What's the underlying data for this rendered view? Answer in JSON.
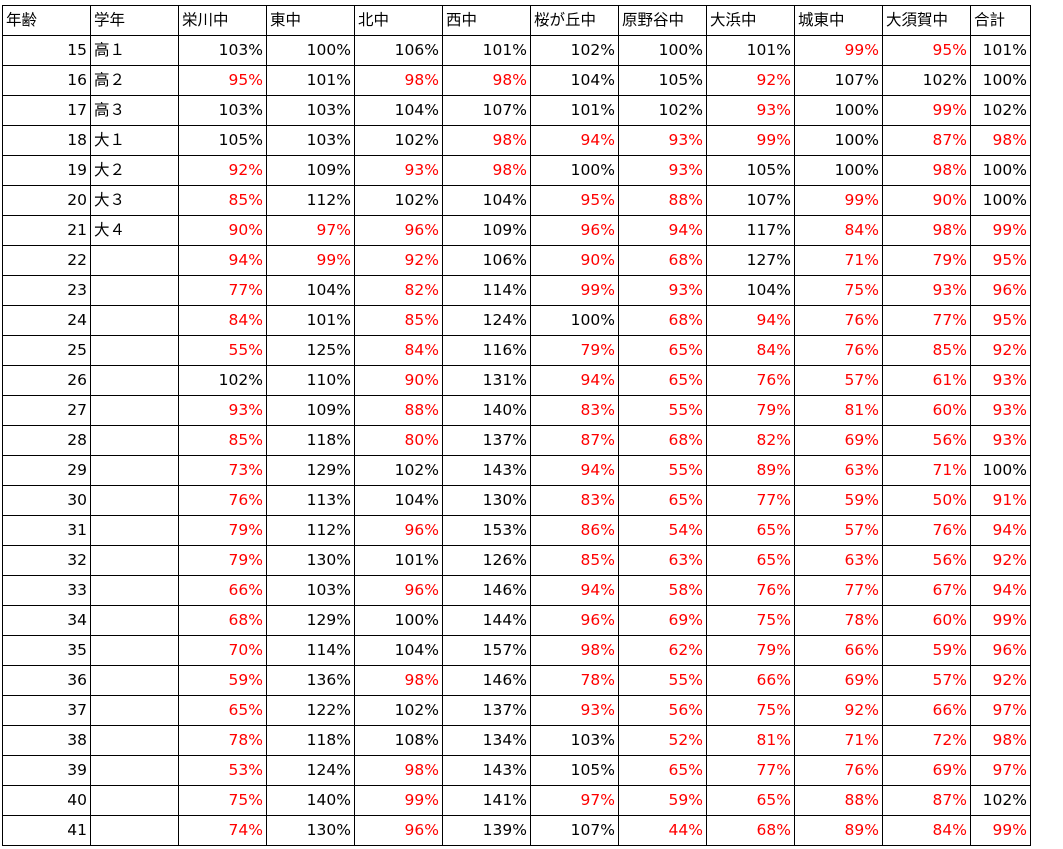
{
  "sheet": {
    "headers": [
      "年齢",
      "学年",
      "栄川中",
      "東中",
      "北中",
      "西中",
      "桜が丘中",
      "原野谷中",
      "大浜中",
      "城東中",
      "大須賀中",
      "合計"
    ],
    "rows": [
      {
        "age": "15",
        "grade": "高１",
        "values": [
          "103%",
          "100%",
          "106%",
          "101%",
          "102%",
          "100%",
          "101%",
          "99%",
          "95%",
          "101%"
        ]
      },
      {
        "age": "16",
        "grade": "高２",
        "values": [
          "95%",
          "101%",
          "98%",
          "98%",
          "104%",
          "105%",
          "92%",
          "107%",
          "102%",
          "100%"
        ]
      },
      {
        "age": "17",
        "grade": "高３",
        "values": [
          "103%",
          "103%",
          "104%",
          "107%",
          "101%",
          "102%",
          "93%",
          "100%",
          "99%",
          "102%"
        ]
      },
      {
        "age": "18",
        "grade": "大１",
        "values": [
          "105%",
          "103%",
          "102%",
          "98%",
          "94%",
          "93%",
          "99%",
          "100%",
          "87%",
          "98%"
        ]
      },
      {
        "age": "19",
        "grade": "大２",
        "values": [
          "92%",
          "109%",
          "93%",
          "98%",
          "100%",
          "93%",
          "105%",
          "100%",
          "98%",
          "100%"
        ]
      },
      {
        "age": "20",
        "grade": "大３",
        "values": [
          "85%",
          "112%",
          "102%",
          "104%",
          "95%",
          "88%",
          "107%",
          "99%",
          "90%",
          "100%"
        ]
      },
      {
        "age": "21",
        "grade": "大４",
        "values": [
          "90%",
          "97%",
          "96%",
          "109%",
          "96%",
          "94%",
          "117%",
          "84%",
          "98%",
          "99%"
        ]
      },
      {
        "age": "22",
        "grade": "",
        "values": [
          "94%",
          "99%",
          "92%",
          "106%",
          "90%",
          "68%",
          "127%",
          "71%",
          "79%",
          "95%"
        ]
      },
      {
        "age": "23",
        "grade": "",
        "values": [
          "77%",
          "104%",
          "82%",
          "114%",
          "99%",
          "93%",
          "104%",
          "75%",
          "93%",
          "96%"
        ]
      },
      {
        "age": "24",
        "grade": "",
        "values": [
          "84%",
          "101%",
          "85%",
          "124%",
          "100%",
          "68%",
          "94%",
          "76%",
          "77%",
          "95%"
        ]
      },
      {
        "age": "25",
        "grade": "",
        "values": [
          "55%",
          "125%",
          "84%",
          "116%",
          "79%",
          "65%",
          "84%",
          "76%",
          "85%",
          "92%"
        ]
      },
      {
        "age": "26",
        "grade": "",
        "values": [
          "102%",
          "110%",
          "90%",
          "131%",
          "94%",
          "65%",
          "76%",
          "57%",
          "61%",
          "93%"
        ]
      },
      {
        "age": "27",
        "grade": "",
        "values": [
          "93%",
          "109%",
          "88%",
          "140%",
          "83%",
          "55%",
          "79%",
          "81%",
          "60%",
          "93%"
        ]
      },
      {
        "age": "28",
        "grade": "",
        "values": [
          "85%",
          "118%",
          "80%",
          "137%",
          "87%",
          "68%",
          "82%",
          "69%",
          "56%",
          "93%"
        ]
      },
      {
        "age": "29",
        "grade": "",
        "values": [
          "73%",
          "129%",
          "102%",
          "143%",
          "94%",
          "55%",
          "89%",
          "63%",
          "71%",
          "100%"
        ]
      },
      {
        "age": "30",
        "grade": "",
        "values": [
          "76%",
          "113%",
          "104%",
          "130%",
          "83%",
          "65%",
          "77%",
          "59%",
          "50%",
          "91%"
        ]
      },
      {
        "age": "31",
        "grade": "",
        "values": [
          "79%",
          "112%",
          "96%",
          "153%",
          "86%",
          "54%",
          "65%",
          "57%",
          "76%",
          "94%"
        ]
      },
      {
        "age": "32",
        "grade": "",
        "values": [
          "79%",
          "130%",
          "101%",
          "126%",
          "85%",
          "63%",
          "65%",
          "63%",
          "56%",
          "92%"
        ]
      },
      {
        "age": "33",
        "grade": "",
        "values": [
          "66%",
          "103%",
          "96%",
          "146%",
          "94%",
          "58%",
          "76%",
          "77%",
          "67%",
          "94%"
        ]
      },
      {
        "age": "34",
        "grade": "",
        "values": [
          "68%",
          "129%",
          "100%",
          "144%",
          "96%",
          "69%",
          "75%",
          "78%",
          "60%",
          "99%"
        ]
      },
      {
        "age": "35",
        "grade": "",
        "values": [
          "70%",
          "114%",
          "104%",
          "157%",
          "98%",
          "62%",
          "79%",
          "66%",
          "59%",
          "96%"
        ]
      },
      {
        "age": "36",
        "grade": "",
        "values": [
          "59%",
          "136%",
          "98%",
          "146%",
          "78%",
          "55%",
          "66%",
          "69%",
          "57%",
          "92%"
        ]
      },
      {
        "age": "37",
        "grade": "",
        "values": [
          "65%",
          "122%",
          "102%",
          "137%",
          "93%",
          "56%",
          "75%",
          "92%",
          "66%",
          "97%"
        ]
      },
      {
        "age": "38",
        "grade": "",
        "values": [
          "78%",
          "118%",
          "108%",
          "134%",
          "103%",
          "52%",
          "81%",
          "71%",
          "72%",
          "98%"
        ]
      },
      {
        "age": "39",
        "grade": "",
        "values": [
          "53%",
          "124%",
          "98%",
          "143%",
          "105%",
          "65%",
          "77%",
          "76%",
          "69%",
          "97%"
        ]
      },
      {
        "age": "40",
        "grade": "",
        "values": [
          "75%",
          "140%",
          "99%",
          "141%",
          "97%",
          "59%",
          "65%",
          "88%",
          "87%",
          "102%"
        ]
      },
      {
        "age": "41",
        "grade": "",
        "values": [
          "74%",
          "130%",
          "96%",
          "139%",
          "107%",
          "44%",
          "68%",
          "89%",
          "84%",
          "99%"
        ]
      }
    ]
  },
  "colors": {
    "text": "#000000",
    "under_100": "#ff0000",
    "grid": "#000000",
    "background": "#ffffff"
  }
}
